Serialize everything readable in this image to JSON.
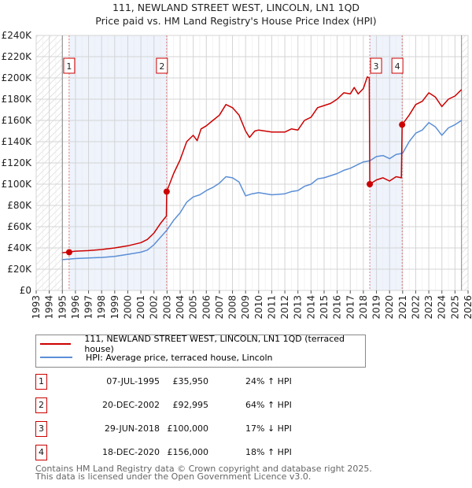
{
  "chart_data": {
    "type": "line",
    "title": "111, NEWLAND STREET WEST, LINCOLN, LN1 1QD",
    "subtitle": "Price paid vs. HM Land Registry's House Price Index (HPI)",
    "xlim": [
      1993,
      2026
    ],
    "ylim": [
      0,
      240000
    ],
    "x_ticks": [
      "1993",
      "1994",
      "1995",
      "1996",
      "1997",
      "1998",
      "1999",
      "2000",
      "2001",
      "2002",
      "2003",
      "2004",
      "2005",
      "2006",
      "2007",
      "2008",
      "2009",
      "2010",
      "2011",
      "2012",
      "2013",
      "2014",
      "2015",
      "2016",
      "2017",
      "2018",
      "2019",
      "2020",
      "2021",
      "2022",
      "2023",
      "2024",
      "2025",
      "2026"
    ],
    "y_ticks": [
      "£0",
      "£20K",
      "£40K",
      "£60K",
      "£80K",
      "£100K",
      "£120K",
      "£140K",
      "£160K",
      "£180K",
      "£200K",
      "£220K",
      "£240K"
    ],
    "grid": true,
    "series": [
      {
        "name": "111, NEWLAND STREET WEST, LINCOLN, LN1 1QD (terraced house)",
        "color": "#cc0000",
        "x": [
          1995.0,
          1996,
          1997,
          1998,
          1999,
          2000,
          2001,
          2001.5,
          2002,
          2002.5,
          2002.95,
          2002.97,
          2003.5,
          2004,
          2004.5,
          2005,
          2005.3,
          2005.6,
          2006,
          2006.5,
          2007,
          2007.5,
          2008,
          2008.5,
          2009,
          2009.3,
          2009.7,
          2010,
          2011,
          2012,
          2012.5,
          2013,
          2013.5,
          2014,
          2014.5,
          2015,
          2015.5,
          2016,
          2016.5,
          2017,
          2017.3,
          2017.6,
          2018,
          2018.3,
          2018.45,
          2018.49,
          2019,
          2019.5,
          2020,
          2020.5,
          2020.9,
          2020.96,
          2021.5,
          2022,
          2022.5,
          2023,
          2023.5,
          2024,
          2024.5,
          2025,
          2025.5
        ],
        "y": [
          35500,
          37000,
          37500,
          38500,
          40000,
          42000,
          45000,
          48000,
          54000,
          63000,
          70000,
          93000,
          110000,
          123000,
          140000,
          146000,
          141000,
          152000,
          155000,
          160000,
          165000,
          175000,
          172000,
          165000,
          150000,
          144000,
          150000,
          151000,
          149000,
          149000,
          152000,
          151000,
          160000,
          163000,
          172000,
          174000,
          176000,
          180000,
          186000,
          185000,
          191000,
          185000,
          190000,
          201000,
          200000,
          100000,
          104000,
          106000,
          103000,
          107000,
          106000,
          156000,
          165000,
          175000,
          178000,
          186000,
          182000,
          173000,
          180000,
          183000,
          189000
        ]
      },
      {
        "name": "HPI: Average price, terraced house, Lincoln",
        "color": "#5b8fd6",
        "x": [
          1995.0,
          1996,
          1997,
          1998,
          1999,
          2000,
          2001,
          2001.5,
          2002,
          2002.5,
          2003,
          2003.5,
          2004,
          2004.5,
          2005,
          2005.5,
          2006,
          2006.5,
          2007,
          2007.5,
          2008,
          2008.5,
          2009,
          2009.5,
          2010,
          2011,
          2012,
          2012.5,
          2013,
          2013.5,
          2014,
          2014.5,
          2015,
          2016,
          2016.5,
          2017,
          2017.5,
          2018,
          2018.5,
          2019,
          2019.5,
          2020,
          2020.5,
          2021,
          2021.5,
          2022,
          2022.5,
          2023,
          2023.5,
          2024,
          2024.5,
          2025,
          2025.5
        ],
        "y": [
          29000,
          30000,
          30500,
          31000,
          32000,
          34000,
          36000,
          38000,
          43000,
          50000,
          57000,
          66000,
          73000,
          83000,
          88000,
          90000,
          94000,
          97000,
          101000,
          107000,
          106000,
          102000,
          89000,
          91000,
          92000,
          90000,
          91000,
          93000,
          94000,
          98000,
          100000,
          105000,
          106000,
          110000,
          113000,
          115000,
          118000,
          121000,
          122000,
          126000,
          127000,
          124000,
          128000,
          129000,
          140000,
          148000,
          151000,
          158000,
          154000,
          146000,
          153000,
          156000,
          160000
        ]
      }
    ],
    "sales": [
      {
        "label": "1",
        "x": 1995.52,
        "y": 35950,
        "date": "07-JUL-1995",
        "price": "£35,950",
        "hpi": "24% ↑ HPI"
      },
      {
        "label": "2",
        "x": 2002.97,
        "y": 92995,
        "date": "20-DEC-2002",
        "price": "£92,995",
        "hpi": "64% ↑ HPI"
      },
      {
        "label": "3",
        "x": 2018.49,
        "y": 100000,
        "date": "29-JUN-2018",
        "price": "£100,000",
        "hpi": "17% ↓ HPI"
      },
      {
        "label": "4",
        "x": 2020.96,
        "y": 156000,
        "date": "18-DEC-2020",
        "price": "£156,000",
        "hpi": "18% ↑ HPI"
      }
    ],
    "shaded_ranges": [
      [
        1995.52,
        2002.97
      ],
      [
        2018.49,
        2020.96
      ]
    ],
    "hatched_ranges": [
      [
        1993,
        1995
      ],
      [
        2025.5,
        2026
      ]
    ],
    "legend_placement": "below"
  },
  "legend": {
    "red": "111, NEWLAND STREET WEST, LINCOLN, LN1 1QD (terraced house)",
    "blue": "HPI: Average price, terraced house, Lincoln"
  },
  "footer": {
    "line1": "Contains HM Land Registry data © Crown copyright and database right 2025.",
    "line2": "This data is licensed under the Open Government Licence v3.0."
  }
}
